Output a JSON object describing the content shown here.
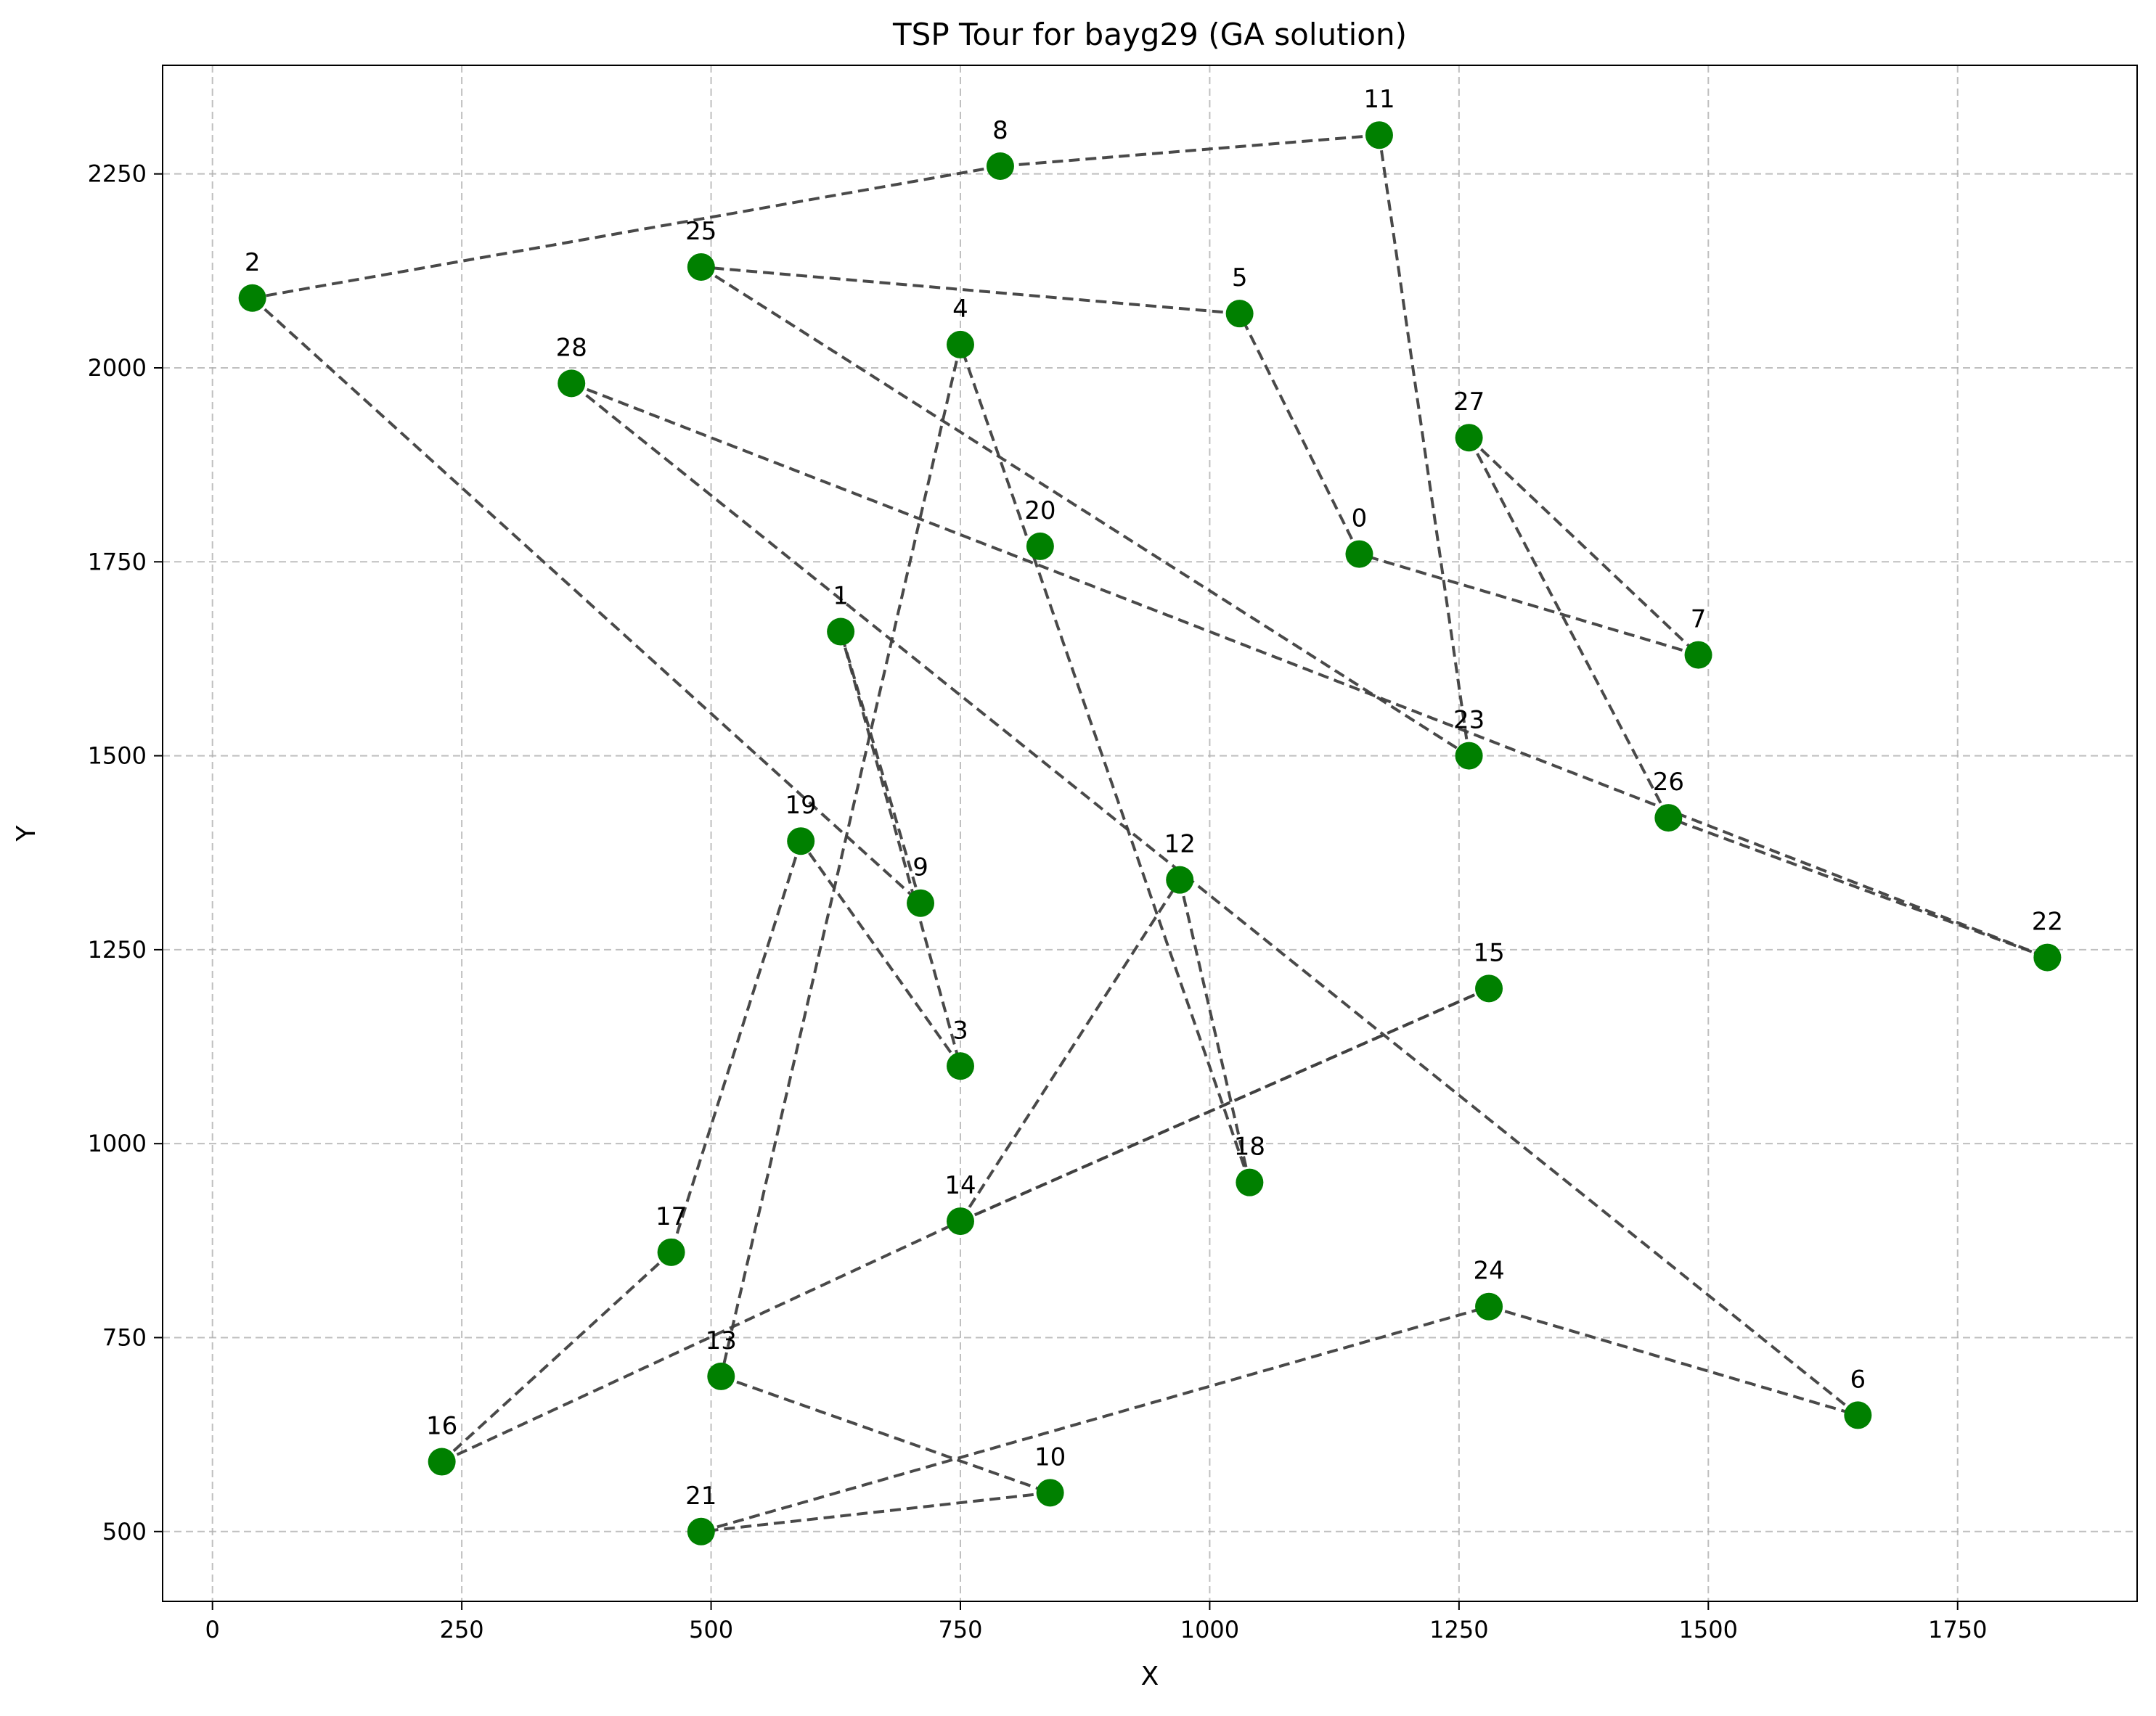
{
  "chart_data": {
    "type": "scatter",
    "title": "TSP Tour for bayg29 (GA solution)",
    "xlabel": "X",
    "ylabel": "Y",
    "xlim": [
      -50,
      1930
    ],
    "ylim": [
      410,
      2390
    ],
    "xticks": [
      "0",
      "250",
      "500",
      "750",
      "1000",
      "1250",
      "1500",
      "1750"
    ],
    "xtick_values": [
      0,
      250,
      500,
      750,
      1000,
      1250,
      1500,
      1750
    ],
    "yticks": [
      "500",
      "750",
      "1000",
      "1250",
      "1500",
      "1750",
      "2000",
      "2250"
    ],
    "ytick_values": [
      500,
      750,
      1000,
      1250,
      1500,
      1750,
      2000,
      2250
    ],
    "grid": true,
    "point_color": "#008000",
    "line_color": "#404040",
    "cities": [
      {
        "label": "0",
        "x": 1150,
        "y": 1760
      },
      {
        "label": "1",
        "x": 630,
        "y": 1660
      },
      {
        "label": "2",
        "x": 40,
        "y": 2090
      },
      {
        "label": "3",
        "x": 750,
        "y": 1100
      },
      {
        "label": "4",
        "x": 750,
        "y": 2030
      },
      {
        "label": "5",
        "x": 1030,
        "y": 2070
      },
      {
        "label": "6",
        "x": 1650,
        "y": 650
      },
      {
        "label": "7",
        "x": 1490,
        "y": 1630
      },
      {
        "label": "8",
        "x": 790,
        "y": 2260
      },
      {
        "label": "9",
        "x": 710,
        "y": 1310
      },
      {
        "label": "10",
        "x": 840,
        "y": 550
      },
      {
        "label": "11",
        "x": 1170,
        "y": 2300
      },
      {
        "label": "12",
        "x": 970,
        "y": 1340
      },
      {
        "label": "13",
        "x": 510,
        "y": 700
      },
      {
        "label": "14",
        "x": 750,
        "y": 900
      },
      {
        "label": "15",
        "x": 1280,
        "y": 1200
      },
      {
        "label": "16",
        "x": 230,
        "y": 590
      },
      {
        "label": "17",
        "x": 460,
        "y": 860
      },
      {
        "label": "18",
        "x": 1040,
        "y": 950
      },
      {
        "label": "19",
        "x": 590,
        "y": 1390
      },
      {
        "label": "20",
        "x": 830,
        "y": 1770
      },
      {
        "label": "21",
        "x": 490,
        "y": 500
      },
      {
        "label": "22",
        "x": 1840,
        "y": 1240
      },
      {
        "label": "23",
        "x": 1260,
        "y": 1500
      },
      {
        "label": "24",
        "x": 1280,
        "y": 790
      },
      {
        "label": "25",
        "x": 490,
        "y": 2130
      },
      {
        "label": "26",
        "x": 1460,
        "y": 1420
      },
      {
        "label": "27",
        "x": 1260,
        "y": 1910
      },
      {
        "label": "28",
        "x": 360,
        "y": 1980
      }
    ],
    "tour": [
      0,
      5,
      25,
      23,
      11,
      8,
      2,
      9,
      1,
      3,
      19,
      17,
      16,
      14,
      15,
      14,
      12,
      18,
      4,
      13,
      10,
      21,
      24,
      6,
      28,
      22,
      26,
      27,
      7,
      0
    ]
  }
}
